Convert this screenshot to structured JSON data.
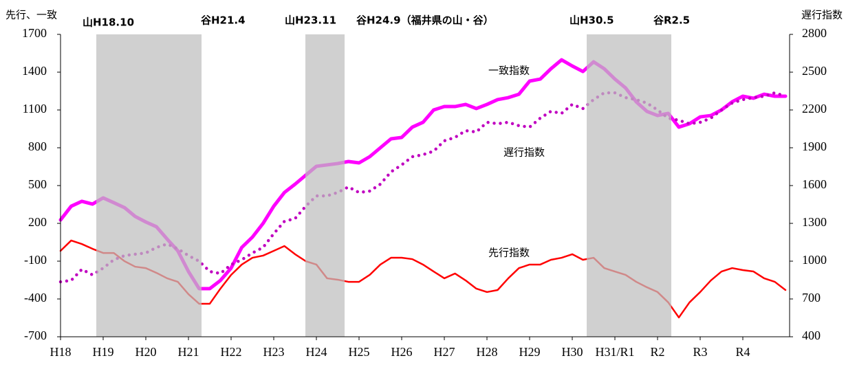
{
  "chart_data": {
    "type": "line",
    "y_label": "先行、一致",
    "y2_label": "遅行指数",
    "annotations": [
      "山H18.10",
      "谷H21.4",
      "山H23.11",
      "谷H24.9（福井県の山・谷）",
      "山H30.5",
      "谷R2.5"
    ],
    "categories": [
      "H18",
      null,
      null,
      null,
      "H19",
      null,
      null,
      null,
      "H20",
      null,
      null,
      null,
      "H21",
      null,
      null,
      null,
      "H22",
      null,
      null,
      null,
      "H23",
      null,
      null,
      null,
      "H24",
      null,
      null,
      null,
      "H25",
      null,
      null,
      null,
      "H26",
      null,
      null,
      null,
      "H27",
      null,
      null,
      null,
      "H28",
      null,
      null,
      null,
      "H29",
      null,
      null,
      null,
      "H30",
      null,
      null,
      null,
      "H31/R1",
      null,
      null,
      null,
      "R2",
      null,
      null,
      null,
      "R3",
      null,
      null,
      null,
      "R4",
      null,
      null,
      null,
      null
    ],
    "series": [
      {
        "name": "一致指数",
        "color": "#ff00ff",
        "values": [
          227,
          336,
          375,
          353,
          402,
          364,
          325,
          255,
          211,
          173,
          75,
          -18,
          -182,
          -318,
          -318,
          -253,
          -155,
          9,
          91,
          200,
          336,
          445,
          511,
          582,
          653,
          664,
          675,
          691,
          680,
          729,
          800,
          871,
          882,
          964,
          1002,
          1100,
          1127,
          1127,
          1144,
          1111,
          1144,
          1182,
          1198,
          1225,
          1329,
          1345,
          1427,
          1498,
          1449,
          1405,
          1482,
          1427,
          1345,
          1275,
          1165,
          1089,
          1056,
          1073,
          964,
          991,
          1045,
          1056,
          1100,
          1165,
          1209,
          1193,
          1225,
          1209,
          1209
        ]
      },
      {
        "name": "先行指数",
        "color": "#ff0000",
        "values": [
          -18,
          64,
          36,
          -2,
          -35,
          -35,
          -100,
          -144,
          -155,
          -193,
          -236,
          -264,
          -362,
          -438,
          -438,
          -318,
          -209,
          -127,
          -73,
          -56,
          -18,
          20,
          -45,
          -100,
          -127,
          -236,
          -247,
          -264,
          -264,
          -209,
          -127,
          -73,
          -73,
          -84,
          -127,
          -182,
          -236,
          -198,
          -253,
          -318,
          -345,
          -329,
          -236,
          -155,
          -127,
          -127,
          -89,
          -73,
          -45,
          -89,
          -73,
          -155,
          -182,
          -209,
          -264,
          -307,
          -345,
          -427,
          -547,
          -427,
          -345,
          -253,
          -182,
          -155,
          -171,
          -182,
          -236,
          -264,
          -329
        ]
      },
      {
        "name": "遅行指数",
        "color": "#c000c0",
        "axis": "y2",
        "dotted": true,
        "values": [
          836,
          847,
          935,
          891,
          945,
          1011,
          1044,
          1055,
          1065,
          1109,
          1136,
          1098,
          1044,
          1000,
          918,
          902,
          973,
          1011,
          1065,
          1109,
          1218,
          1316,
          1338,
          1436,
          1518,
          1518,
          1545,
          1589,
          1545,
          1556,
          1611,
          1709,
          1764,
          1829,
          1845,
          1873,
          1955,
          1982,
          2036,
          2025,
          2102,
          2091,
          2102,
          2075,
          2064,
          2135,
          2189,
          2173,
          2244,
          2211,
          2282,
          2336,
          2336,
          2298,
          2282,
          2255,
          2200,
          2135,
          2118,
          2091,
          2102,
          2135,
          2200,
          2255,
          2282,
          2298,
          2309,
          2336,
          2309
        ]
      }
    ],
    "ylim": [
      -700,
      1700
    ],
    "yticks": [
      -700,
      -400,
      -100,
      200,
      500,
      800,
      1100,
      1400,
      1700
    ],
    "y2lim": [
      400,
      2800
    ],
    "y2ticks": [
      400,
      700,
      1000,
      1300,
      1600,
      1900,
      2200,
      2500,
      2800
    ]
  }
}
